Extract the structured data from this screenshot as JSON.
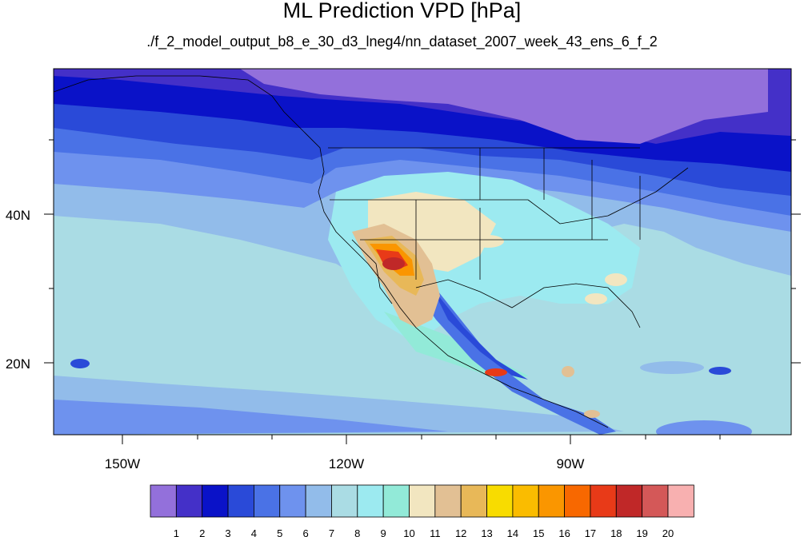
{
  "title": "ML Prediction VPD [hPa]",
  "subtitle": "./f_2_model_output_b8_e_30_d3_lneg4/nn_dataset_2007_week_43_ens_6_f_2",
  "map": {
    "lon_labels": [
      "150W",
      "120W",
      "90W"
    ],
    "lat_labels": [
      "40N",
      "20N"
    ]
  },
  "colorbar": {
    "levels": [
      "1",
      "2",
      "3",
      "4",
      "5",
      "6",
      "7",
      "8",
      "9",
      "10",
      "11",
      "12",
      "13",
      "14",
      "15",
      "16",
      "17",
      "18",
      "19",
      "20"
    ],
    "colors": [
      "#9370db",
      "#4430c8",
      "#0a12c8",
      "#2a4ad8",
      "#4a72e6",
      "#6e92ee",
      "#92bcea",
      "#aadce4",
      "#9ceaf0",
      "#92ead8",
      "#f2e6c0",
      "#e2c094",
      "#e8b858",
      "#f8dc00",
      "#fabc00",
      "#fa9600",
      "#f86800",
      "#e83a18",
      "#c02828",
      "#d45858",
      "#f8b0b0"
    ]
  }
}
